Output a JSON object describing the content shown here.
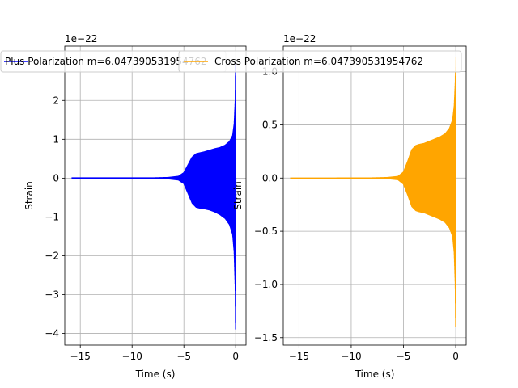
{
  "chart_data": [
    {
      "type": "line",
      "title": "",
      "xlabel": "Time (s)",
      "ylabel": "Strain",
      "offset_text": "1e−22",
      "scale": 1e-22,
      "xlim": [
        -16.5,
        1.0
      ],
      "ylim": [
        -4.3,
        3.4
      ],
      "xticks": [
        -15,
        -10,
        -5,
        0
      ],
      "xtick_labels": [
        "−15",
        "−10",
        "−5",
        "0"
      ],
      "yticks": [
        -4,
        -3,
        -2,
        -1,
        0,
        1,
        2
      ],
      "ytick_labels": [
        "−4",
        "−3",
        "−2",
        "−1",
        "0",
        "1",
        "2"
      ],
      "grid": true,
      "legend": "top-right",
      "series": [
        {
          "name": "Plus Polarization m=6.047390531954762",
          "color": "#0000ff",
          "envelope": {
            "t": [
              -15.8,
              -12,
              -8,
              -6.5,
              -5.5,
              -5.0,
              -4.6,
              -4.2,
              -3.8,
              -3.5,
              -3.0,
              -2.5,
              -2.0,
              -1.5,
              -1.0,
              -0.6,
              -0.3,
              -0.15,
              -0.05,
              -0.02,
              0.0,
              0.02
            ],
            "upper": [
              0.02,
              0.02,
              0.02,
              0.03,
              0.06,
              0.15,
              0.35,
              0.55,
              0.64,
              0.66,
              0.69,
              0.73,
              0.77,
              0.8,
              0.86,
              0.95,
              1.1,
              1.4,
              2.0,
              2.9,
              3.0,
              0.0
            ],
            "lower": [
              -0.02,
              -0.02,
              -0.02,
              -0.03,
              -0.06,
              -0.15,
              -0.4,
              -0.65,
              -0.76,
              -0.78,
              -0.8,
              -0.83,
              -0.88,
              -0.95,
              -1.05,
              -1.2,
              -1.45,
              -1.9,
              -2.8,
              -3.8,
              -4.0,
              0.0
            ]
          }
        }
      ]
    },
    {
      "type": "line",
      "title": "",
      "xlabel": "Time (s)",
      "ylabel": "Strain",
      "offset_text": "1e−22",
      "scale": 1e-22,
      "xlim": [
        -16.5,
        1.0
      ],
      "ylim": [
        -1.57,
        1.24
      ],
      "xticks": [
        -15,
        -10,
        -5,
        0
      ],
      "xtick_labels": [
        "−15",
        "−10",
        "−5",
        "0"
      ],
      "yticks": [
        -1.5,
        -1.0,
        -0.5,
        0.0,
        0.5,
        1.0
      ],
      "ytick_labels": [
        "−1.5",
        "−1.0",
        "−0.5",
        "0.0",
        "0.5",
        "1.0"
      ],
      "grid": true,
      "legend": "top-right",
      "series": [
        {
          "name": "Cross Polarization m=6.047390531954762",
          "color": "#ffa500",
          "envelope": {
            "t": [
              -15.8,
              -12,
              -8,
              -6.5,
              -5.5,
              -5.0,
              -4.6,
              -4.2,
              -3.8,
              -3.5,
              -3.0,
              -2.5,
              -2.0,
              -1.5,
              -1.0,
              -0.6,
              -0.3,
              -0.15,
              -0.05,
              -0.02,
              0.0,
              0.02
            ],
            "upper": [
              0.005,
              0.005,
              0.006,
              0.01,
              0.02,
              0.06,
              0.16,
              0.27,
              0.31,
              0.32,
              0.33,
              0.35,
              0.37,
              0.39,
              0.42,
              0.47,
              0.55,
              0.68,
              0.9,
              1.1,
              1.15,
              0.0
            ],
            "lower": [
              -0.005,
              -0.005,
              -0.006,
              -0.01,
              -0.02,
              -0.06,
              -0.16,
              -0.27,
              -0.31,
              -0.32,
              -0.33,
              -0.35,
              -0.37,
              -0.39,
              -0.42,
              -0.47,
              -0.55,
              -0.7,
              -1.0,
              -1.35,
              -1.45,
              0.0
            ]
          }
        }
      ]
    }
  ]
}
